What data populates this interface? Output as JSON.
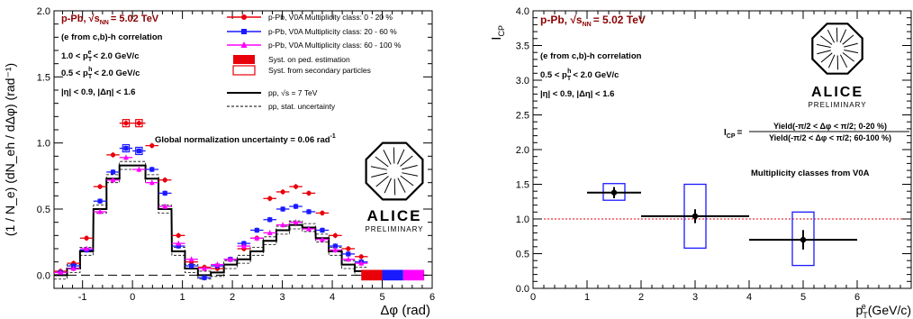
{
  "colors": {
    "class_0_20": "#e8000b",
    "class_20_60": "#1a1aff",
    "class_60_100": "#ff00ff",
    "pp": "#000000",
    "brand_title": "#8b0000",
    "unity_line": "#e8000b",
    "icp_box": "#1a1aff"
  },
  "logo": {
    "text": "ALICE",
    "subtext": "PRELIMINARY"
  },
  "chart_data": [
    {
      "type": "line",
      "title": "p-Pb, √s_NN = 5.02 TeV",
      "xlabel": "Δφ (rad)",
      "ylabel": "(1 / N_e) (dN_eh / dΔφ) (rad⁻¹)",
      "xlim": [
        -1.5708,
        6.0
      ],
      "ylim": [
        -0.1,
        2.0
      ],
      "xticks": [
        "-1",
        "0",
        "1",
        "2",
        "3",
        "4",
        "5",
        "6"
      ],
      "yticks": [
        "0.0",
        "0.5",
        "1.0",
        "1.5",
        "2.0"
      ],
      "grid": false,
      "legend_position": "top-right",
      "annotations": {
        "system": "p-Pb, √s",
        "system_sub": "NN",
        "system_energy": "= 5.02 TeV",
        "correlation": "(e from c,b)-h correlation",
        "pt_e": "1.0 < p",
        "pt_e_sup": "e",
        "pt_e_sub": "T",
        "pt_e_range": "< 2.0 GeV/c",
        "pt_h": "0.5 < p",
        "pt_h_sup": "h",
        "pt_h_sub": "T",
        "pt_h_range": "< 2.0 GeV/c",
        "eta": "|η| < 0.9, |Δη| < 1.6",
        "norm": "Global normalization uncertainty = 0.06 rad",
        "norm_sup": "-1"
      },
      "legend": [
        "p-Pb, V0A Multiplicity class: 0 - 20 %",
        "p-Pb, V0A Multiplicity class: 20 - 60 %",
        "p-Pb, V0A Multiplicity class: 60 - 100 %",
        "Syst. on ped. estimation",
        "Syst. from secondary particles",
        "pp, √s = 7 TeV",
        "pp, stat. uncertainty"
      ],
      "x": [
        -1.44,
        -1.18,
        -0.92,
        -0.65,
        -0.39,
        -0.13,
        0.13,
        0.39,
        0.65,
        0.92,
        1.18,
        1.44,
        1.7,
        1.96,
        2.23,
        2.49,
        2.75,
        3.01,
        3.27,
        3.53,
        3.8,
        4.06,
        4.32,
        4.58
      ],
      "series": [
        {
          "name": "p-Pb, V0A Multiplicity class: 0 - 20 %",
          "values": [
            0.03,
            0.09,
            0.28,
            0.67,
            0.91,
            1.15,
            1.15,
            0.98,
            0.72,
            0.3,
            0.1,
            0.06,
            0.05,
            0.12,
            0.2,
            0.28,
            0.58,
            0.63,
            0.67,
            0.62,
            0.47,
            0.3,
            0.2,
            0.14
          ]
        },
        {
          "name": "p-Pb, V0A Multiplicity class: 20 - 60 %",
          "values": [
            0.02,
            0.07,
            0.19,
            0.56,
            0.78,
            0.96,
            0.94,
            0.8,
            0.62,
            0.22,
            0.07,
            -0.02,
            0.07,
            0.12,
            0.24,
            0.34,
            0.42,
            0.5,
            0.52,
            0.48,
            0.34,
            0.22,
            0.16,
            0.1
          ]
        },
        {
          "name": "p-Pb, V0A Multiplicity class: 60 - 100 %",
          "values": [
            0.02,
            0.05,
            0.2,
            0.48,
            0.72,
            0.89,
            0.8,
            0.7,
            0.52,
            0.24,
            0.12,
            0.05,
            0.08,
            0.12,
            0.22,
            0.28,
            0.32,
            0.38,
            0.4,
            0.35,
            0.27,
            0.19,
            0.12,
            0.09
          ]
        },
        {
          "name": "pp, √s = 7 TeV",
          "values": [
            0.0,
            0.05,
            0.18,
            0.5,
            0.73,
            0.83,
            0.83,
            0.73,
            0.5,
            0.18,
            0.05,
            0.0,
            0.02,
            0.08,
            0.12,
            0.18,
            0.26,
            0.34,
            0.38,
            0.36,
            0.28,
            0.18,
            0.08,
            0.03
          ]
        }
      ],
      "ped_syst_right_edge_x": [
        5.0,
        5.42,
        5.84
      ]
    },
    {
      "type": "scatter",
      "ylabel": "I_CP",
      "xlabel": "p_T^e (GeV/c)",
      "xlim": [
        0,
        7
      ],
      "ylim": [
        0,
        4.0
      ],
      "xticks": [
        "0",
        "1",
        "2",
        "3",
        "4",
        "5",
        "6"
      ],
      "yticks": [
        "0.0",
        "0.5",
        "1.0",
        "1.5",
        "2.0",
        "2.5",
        "3.0",
        "3.5",
        "4.0"
      ],
      "grid": false,
      "reference_line": 1.0,
      "annotations": {
        "system": "p-Pb, √s",
        "system_sub": "NN",
        "system_energy": "= 5.02 TeV",
        "correlation": "(e from c,b)-h correlation",
        "pt_h": "0.5 < p",
        "pt_h_sup": "h",
        "pt_h_sub": "T",
        "pt_h_range": "< 2.0 GeV/c",
        "eta": "|η| < 0.9, |Δη| < 1.6",
        "icp_label": "I",
        "icp_sub": "CP",
        "icp_eq": "=",
        "icp_num": "Yield(-π/2 < Δφ < π/2; 0-20 %)",
        "icp_den": "Yield(-π/2 < Δφ < π/2; 60-100 %)",
        "classes": "Multiplicity classes from V0A"
      },
      "points": [
        {
          "x": 1.5,
          "x_low": 1.0,
          "x_high": 2.0,
          "y": 1.38,
          "stat": 0.08,
          "syst_low": 1.27,
          "syst_high": 1.51,
          "box_half_width": 0.2
        },
        {
          "x": 3.0,
          "x_low": 2.0,
          "x_high": 4.0,
          "y": 1.04,
          "stat": 0.1,
          "syst_low": 0.58,
          "syst_high": 1.5,
          "box_half_width": 0.2
        },
        {
          "x": 5.0,
          "x_low": 4.0,
          "x_high": 6.0,
          "y": 0.7,
          "stat": 0.14,
          "syst_low": 0.33,
          "syst_high": 1.1,
          "box_half_width": 0.2
        }
      ]
    }
  ]
}
